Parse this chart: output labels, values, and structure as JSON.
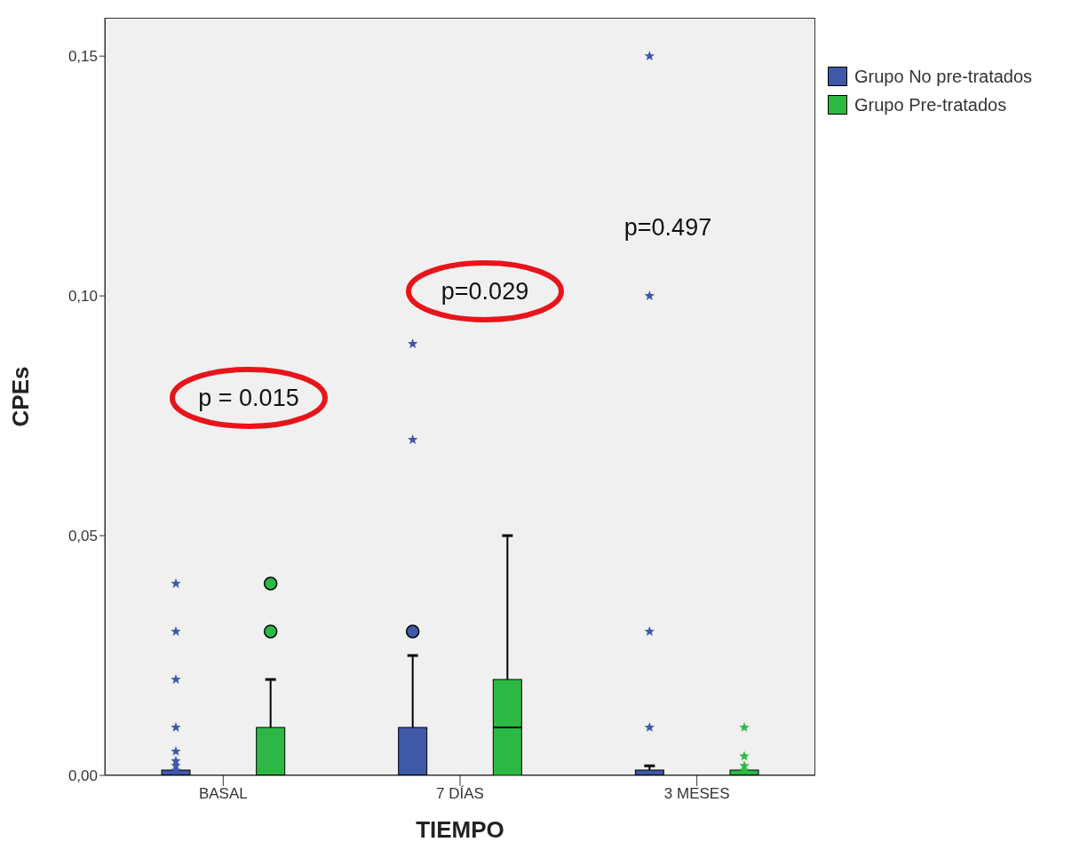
{
  "chart_data": {
    "type": "box",
    "xlabel": "TIEMPO",
    "ylabel": "CPEs",
    "categories": [
      "BASAL",
      "7 DÍAS",
      "3 MESES"
    ],
    "ylim": [
      0,
      0.158
    ],
    "yticks": [
      {
        "value": 0,
        "label": "0,00"
      },
      {
        "value": 0.05,
        "label": "0,05"
      },
      {
        "value": 0.1,
        "label": "0,10"
      },
      {
        "value": 0.15,
        "label": "0,15"
      }
    ],
    "legend": "top right",
    "series": [
      {
        "name": "Grupo No pre-tratados",
        "color": "#3f58a8",
        "boxes": [
          {
            "low": 0,
            "q1": 0,
            "median": 0,
            "q3": 0,
            "high": 0,
            "outliers": [
              0.04,
              0.03,
              0.02,
              0.01,
              0.005,
              0.003,
              0.002,
              0.001
            ]
          },
          {
            "low": 0,
            "q1": 0,
            "median": 0,
            "q3": 0.01,
            "high": 0.025,
            "outliers": [
              0.03,
              0.07,
              0.09
            ]
          },
          {
            "low": 0,
            "q1": 0,
            "median": 0,
            "q3": 0.001,
            "high": 0.002,
            "outliers": [
              0.01,
              0.03,
              0.1,
              0.15
            ]
          }
        ]
      },
      {
        "name": "Grupo Pre-tratados",
        "color": "#2db845",
        "boxes": [
          {
            "low": 0,
            "q1": 0,
            "median": 0,
            "q3": 0.01,
            "high": 0.02,
            "outliers": [
              0.03,
              0.04
            ]
          },
          {
            "low": 0,
            "q1": 0,
            "median": 0.01,
            "q3": 0.02,
            "high": 0.05
          },
          {
            "low": 0,
            "q1": 0,
            "median": 0,
            "q3": 0,
            "high": 0,
            "outliers": [
              0.01,
              0.004,
              0.002,
              0.001
            ]
          }
        ]
      }
    ],
    "annotations": [
      "p = 0.015",
      "p=0.029",
      "p=0.497"
    ]
  }
}
